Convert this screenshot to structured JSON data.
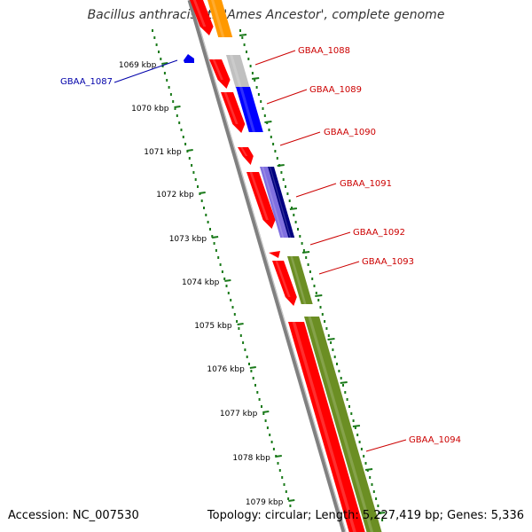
{
  "title": "Bacillus anthracis str. 'Ames Ancestor', complete genome",
  "footer": {
    "accession": "Accession: NC_007530",
    "summary": "Topology: circular; Length: 5,227,419 bp; Genes: 5,336"
  },
  "colors": {
    "backbone": "#808080",
    "tick": "#1a7a1a",
    "label_red": "#cc0000",
    "label_blue": "#0000aa"
  },
  "scale_labels": [
    "1069 kbp",
    "1070 kbp",
    "1071 kbp",
    "1072 kbp",
    "1073 kbp",
    "1074 kbp",
    "1075 kbp",
    "1076 kbp",
    "1077 kbp",
    "1078 kbp",
    "1079 kbp"
  ],
  "gene_labels": [
    {
      "text": "GBAA_1087",
      "color": "#0000aa"
    },
    {
      "text": "GBAA_1088",
      "color": "#cc0000"
    },
    {
      "text": "GBAA_1089",
      "color": "#cc0000"
    },
    {
      "text": "GBAA_1090",
      "color": "#cc0000"
    },
    {
      "text": "GBAA_1091",
      "color": "#cc0000"
    },
    {
      "text": "GBAA_1092",
      "color": "#cc0000"
    },
    {
      "text": "GBAA_1093",
      "color": "#cc0000"
    },
    {
      "text": "GBAA_1094",
      "color": "#cc0000"
    }
  ]
}
